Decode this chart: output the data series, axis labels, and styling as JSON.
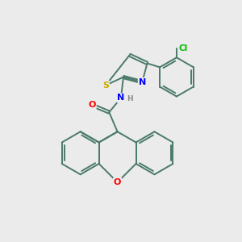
{
  "bg_color": "#ebebeb",
  "bond_color": "#4a7a6a",
  "atom_colors": {
    "S": "#ccaa00",
    "N": "#0000ff",
    "O": "#ff0000",
    "Cl": "#00bb00",
    "H": "#888888",
    "C": "#4a7a6a"
  },
  "line_width": 1.4,
  "dbo": 0.055
}
